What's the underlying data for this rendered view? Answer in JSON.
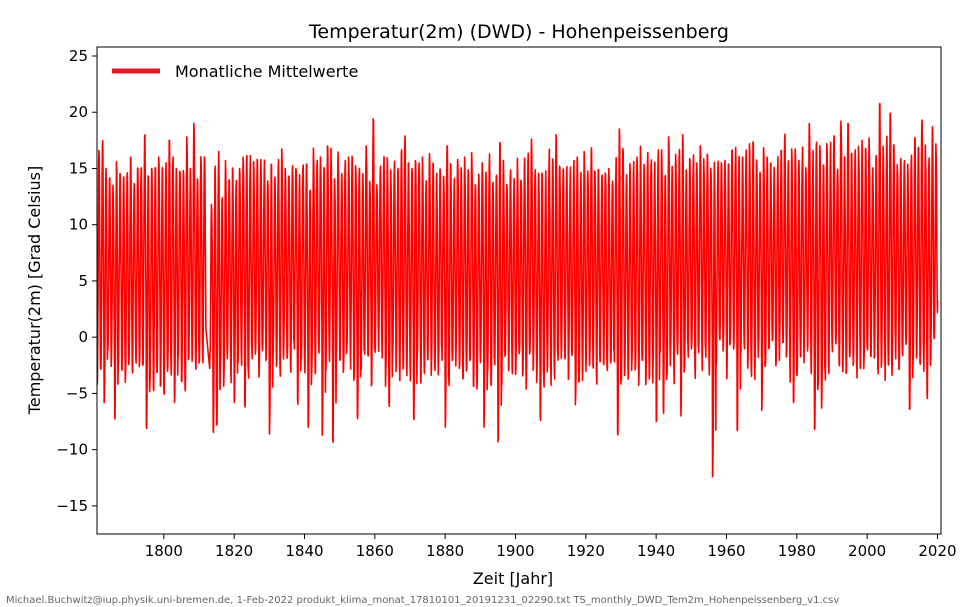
{
  "chart_data": {
    "type": "line",
    "title": "Temperatur(2m) (DWD) - Hohenpeissenberg",
    "xlabel": "Zeit [Jahr]",
    "ylabel": "Temperatur(2m) [Grad Celsius]",
    "xlim": [
      1781,
      2021
    ],
    "ylim": [
      -17.5,
      25.8
    ],
    "xticks": [
      1800,
      1820,
      1840,
      1860,
      1880,
      1900,
      1920,
      1940,
      1960,
      1980,
      2000,
      2020
    ],
    "yticks": [
      -15,
      -10,
      -5,
      0,
      5,
      10,
      15,
      20,
      25
    ],
    "grid": false,
    "legend_position": "top-left",
    "series": [
      {
        "name": "Monatliche Mittelwerte",
        "color": "#ff0000",
        "legend_color": "#e31a2a",
        "x_start": 1781,
        "x_end": 2020,
        "resolution": "monthly",
        "gap": [
          1811.5,
          1813.5
        ],
        "annual_maxima": [
          {
            "x": 1781.5,
            "y": 16.6
          },
          {
            "x": 1782.5,
            "y": 17.0
          },
          {
            "x": 1783.5,
            "y": 15.0
          },
          {
            "x": 1784.5,
            "y": 14.0
          },
          {
            "x": 1785.5,
            "y": 13.5
          },
          {
            "x": 1786.5,
            "y": 15.6
          },
          {
            "x": 1788.5,
            "y": 14.0
          },
          {
            "x": 1790.5,
            "y": 16.0
          },
          {
            "x": 1794.5,
            "y": 17.8
          },
          {
            "x": 1796.5,
            "y": 15.0
          },
          {
            "x": 1798.5,
            "y": 16.0
          },
          {
            "x": 1801.5,
            "y": 17.5
          },
          {
            "x": 1803.5,
            "y": 15.0
          },
          {
            "x": 1806.5,
            "y": 17.8
          },
          {
            "x": 1808.5,
            "y": 19.0
          },
          {
            "x": 1811.5,
            "y": 16.0
          },
          {
            "x": 1813.5,
            "y": 11.8
          },
          {
            "x": 1816.5,
            "y": 12.0
          },
          {
            "x": 1822.5,
            "y": 16.0
          },
          {
            "x": 1826.5,
            "y": 15.8
          },
          {
            "x": 1834.5,
            "y": 15.0
          },
          {
            "x": 1842.5,
            "y": 16.8
          },
          {
            "x": 1846.5,
            "y": 17.0
          },
          {
            "x": 1852.5,
            "y": 16.0
          },
          {
            "x": 1857.5,
            "y": 17.0
          },
          {
            "x": 1859.5,
            "y": 19.4
          },
          {
            "x": 1868.5,
            "y": 17.5
          },
          {
            "x": 1873.5,
            "y": 16.0
          },
          {
            "x": 1880.5,
            "y": 17.0
          },
          {
            "x": 1885.5,
            "y": 16.0
          },
          {
            "x": 1890.5,
            "y": 15.5
          },
          {
            "x": 1895.5,
            "y": 17.0
          },
          {
            "x": 1904.5,
            "y": 17.6
          },
          {
            "x": 1911.5,
            "y": 18.0
          },
          {
            "x": 1917.5,
            "y": 16.0
          },
          {
            "x": 1921.5,
            "y": 16.5
          },
          {
            "x": 1929.5,
            "y": 18.5
          },
          {
            "x": 1934.5,
            "y": 16.0
          },
          {
            "x": 1943.5,
            "y": 17.8
          },
          {
            "x": 1947.5,
            "y": 18.0
          },
          {
            "x": 1952.5,
            "y": 17.0
          },
          {
            "x": 1958.5,
            "y": 15.5
          },
          {
            "x": 1964.5,
            "y": 16.0
          },
          {
            "x": 1971.5,
            "y": 16.0
          },
          {
            "x": 1976.5,
            "y": 17.5
          },
          {
            "x": 1983.5,
            "y": 19.0
          },
          {
            "x": 1988.5,
            "y": 17.2
          },
          {
            "x": 1992.5,
            "y": 19.2
          },
          {
            "x": 1994.5,
            "y": 19.0
          },
          {
            "x": 1998.5,
            "y": 17.5
          },
          {
            "x": 2003.5,
            "y": 20.7
          },
          {
            "x": 2006.5,
            "y": 19.9
          },
          {
            "x": 2013.5,
            "y": 17.6
          },
          {
            "x": 2015.5,
            "y": 19.0
          },
          {
            "x": 2018.5,
            "y": 18.7
          }
        ],
        "annual_minima": [
          {
            "x": 1783.0,
            "y": -5.8
          },
          {
            "x": 1786.0,
            "y": -7.0
          },
          {
            "x": 1789.0,
            "y": -4.0
          },
          {
            "x": 1795.0,
            "y": -7.8
          },
          {
            "x": 1800.0,
            "y": -5.0
          },
          {
            "x": 1803.0,
            "y": -5.8
          },
          {
            "x": 1806.0,
            "y": -4.5
          },
          {
            "x": 1810.0,
            "y": -2.3
          },
          {
            "x": 1814.0,
            "y": -8.3
          },
          {
            "x": 1815.0,
            "y": -7.8
          },
          {
            "x": 1820.0,
            "y": -5.8
          },
          {
            "x": 1823.0,
            "y": -6.0
          },
          {
            "x": 1830.0,
            "y": -8.6
          },
          {
            "x": 1838.0,
            "y": -5.5
          },
          {
            "x": 1841.0,
            "y": -8.0
          },
          {
            "x": 1845.0,
            "y": -8.7
          },
          {
            "x": 1848.0,
            "y": -9.1
          },
          {
            "x": 1855.0,
            "y": -7.0
          },
          {
            "x": 1864.0,
            "y": -5.8
          },
          {
            "x": 1871.0,
            "y": -7.0
          },
          {
            "x": 1880.0,
            "y": -8.0
          },
          {
            "x": 1891.0,
            "y": -8.0
          },
          {
            "x": 1895.0,
            "y": -9.3
          },
          {
            "x": 1907.0,
            "y": -7.0
          },
          {
            "x": 1917.0,
            "y": -6.0
          },
          {
            "x": 1929.0,
            "y": -8.5
          },
          {
            "x": 1940.0,
            "y": -7.5
          },
          {
            "x": 1942.0,
            "y": -6.3
          },
          {
            "x": 1947.0,
            "y": -7.0
          },
          {
            "x": 1956.0,
            "y": -12.4
          },
          {
            "x": 1963.0,
            "y": -8.2
          },
          {
            "x": 1970.0,
            "y": -6.5
          },
          {
            "x": 1979.0,
            "y": -5.8
          },
          {
            "x": 1985.0,
            "y": -8.2
          },
          {
            "x": 1987.0,
            "y": -6.3
          },
          {
            "x": 2012.0,
            "y": -6.4
          },
          {
            "x": 2017.0,
            "y": -5.0
          }
        ]
      }
    ]
  },
  "footer": "Michael.Buchwitz@iup.physik.uni-bremen.de, 1-Feb-2022 produkt_klima_monat_17810101_20191231_02290.txt TS_monthly_DWD_Tem2m_Hohenpeissenberg_v1.csv"
}
